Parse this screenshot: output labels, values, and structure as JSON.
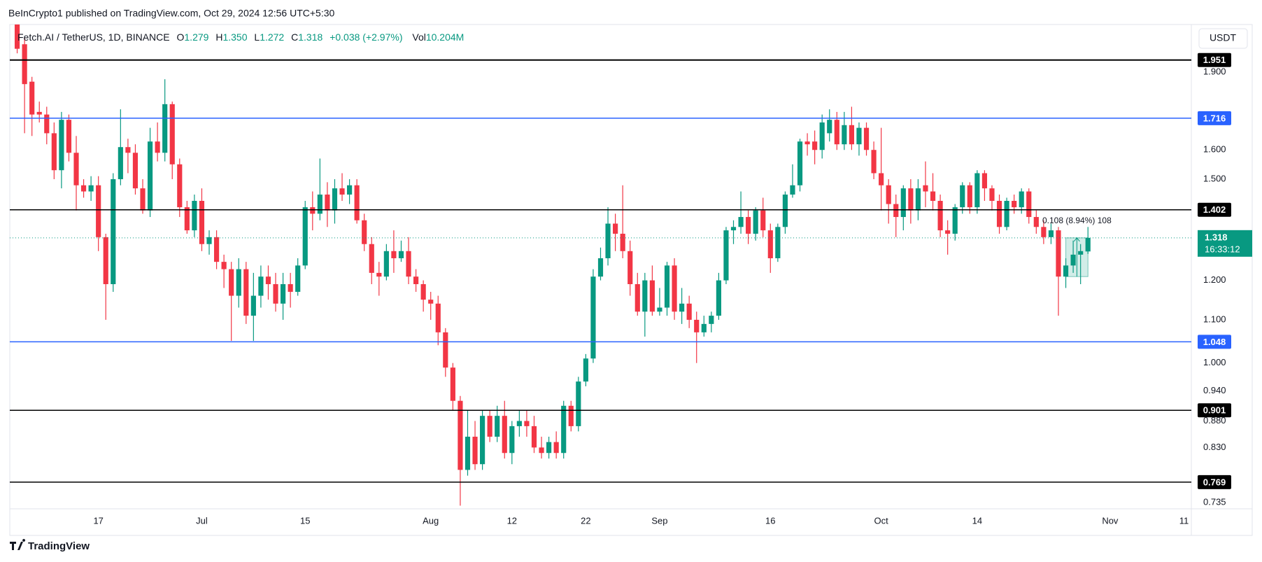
{
  "header": {
    "text": "BeInCrypto1 published on TradingView.com, Oct 29, 2024 12:56 UTC+5:30"
  },
  "footer": {
    "brand": "TradingView"
  },
  "chart_data": {
    "type": "candlestick",
    "legend": {
      "symbol": "Fetch.AI / TetherUS, 1D, BINANCE",
      "open_label": "O",
      "open": "1.279",
      "high_label": "H",
      "high": "1.350",
      "low_label": "L",
      "low": "1.272",
      "close_label": "C",
      "close": "1.318",
      "change": "+0.038 (+2.97%)",
      "volume_label": "Vol",
      "volume": "10.204M"
    },
    "currency": "USDT",
    "countdown": "16:33:12",
    "up_color": "#089981",
    "down_color": "#f23645",
    "log_scale": true,
    "grid": false,
    "xlim": [
      "06-05",
      "11-12"
    ],
    "ylim": [
      0.725,
      2.11
    ],
    "yticks": [
      0.735,
      {
        "value": 0.83,
        "label": "0.830"
      },
      {
        "value": 0.88,
        "label": "0.880"
      },
      {
        "value": 0.94,
        "label": "0.940"
      },
      {
        "value": 1,
        "label": "1.000"
      },
      {
        "value": 1.1,
        "label": "1.100"
      },
      {
        "value": 1.2,
        "label": "1.200"
      },
      {
        "value": 1.5,
        "label": "1.500"
      },
      {
        "value": 1.6,
        "label": "1.600"
      },
      {
        "value": 1.9,
        "label": "1.900"
      }
    ],
    "xticks": [
      {
        "value": "06-17",
        "label": "17"
      },
      {
        "value": "07-01",
        "label": "Jul"
      },
      {
        "value": "07-15",
        "label": "15"
      },
      {
        "value": "08-01",
        "label": "Aug"
      },
      {
        "value": "08-12",
        "label": "12"
      },
      {
        "value": "08-22",
        "label": "22"
      },
      {
        "value": "09-01",
        "label": "Sep"
      },
      {
        "value": "09-16",
        "label": "16"
      },
      {
        "value": "10-01",
        "label": "Oct"
      },
      {
        "value": "10-14",
        "label": "14"
      },
      {
        "value": "11-01",
        "label": "Nov"
      },
      {
        "value": "11-11",
        "label": "11"
      }
    ],
    "levels": [
      {
        "value": 1.951,
        "color": "#000000"
      },
      {
        "value": 1.716,
        "color": "#2962ff"
      },
      {
        "value": 1.402,
        "color": "#000000"
      },
      {
        "value": 1.048,
        "color": "#2962ff"
      },
      {
        "value": 0.901,
        "color": "#000000"
      },
      {
        "value": 0.769,
        "color": "#000000"
      }
    ],
    "measure": {
      "label": "0.108 (8.94%) 108",
      "x": [
        "10-26",
        "10-29"
      ],
      "low": 1.21,
      "high": 1.318
    },
    "x": [
      "06-06",
      "06-07",
      "06-08",
      "06-09",
      "06-10",
      "06-11",
      "06-12",
      "06-13",
      "06-14",
      "06-15",
      "06-16",
      "06-17",
      "06-18",
      "06-19",
      "06-20",
      "06-21",
      "06-22",
      "06-23",
      "06-24",
      "06-25",
      "06-26",
      "06-27",
      "06-28",
      "06-29",
      "06-30",
      "07-01",
      "07-02",
      "07-03",
      "07-04",
      "07-05",
      "07-06",
      "07-07",
      "07-08",
      "07-09",
      "07-10",
      "07-11",
      "07-12",
      "07-13",
      "07-14",
      "07-15",
      "07-16",
      "07-17",
      "07-18",
      "07-19",
      "07-20",
      "07-21",
      "07-22",
      "07-23",
      "07-24",
      "07-25",
      "07-26",
      "07-27",
      "07-28",
      "07-29",
      "07-30",
      "07-31",
      "08-01",
      "08-02",
      "08-03",
      "08-04",
      "08-05",
      "08-06",
      "08-07",
      "08-08",
      "08-09",
      "08-10",
      "08-11",
      "08-12",
      "08-13",
      "08-14",
      "08-15",
      "08-16",
      "08-17",
      "08-18",
      "08-19",
      "08-20",
      "08-21",
      "08-22",
      "08-23",
      "08-24",
      "08-25",
      "08-26",
      "08-27",
      "08-28",
      "08-29",
      "08-30",
      "08-31",
      "09-01",
      "09-02",
      "09-03",
      "09-04",
      "09-05",
      "09-06",
      "09-07",
      "09-08",
      "09-09",
      "09-10",
      "09-11",
      "09-12",
      "09-13",
      "09-14",
      "09-15",
      "09-16",
      "09-17",
      "09-18",
      "09-19",
      "09-20",
      "09-21",
      "09-22",
      "09-23",
      "09-24",
      "09-25",
      "09-26",
      "09-27",
      "09-28",
      "09-29",
      "09-30",
      "10-01",
      "10-02",
      "10-03",
      "10-04",
      "10-05",
      "10-06",
      "10-07",
      "10-08",
      "10-09",
      "10-10",
      "10-11",
      "10-12",
      "10-13",
      "10-14",
      "10-15",
      "10-16",
      "10-17",
      "10-18",
      "10-19",
      "10-20",
      "10-21",
      "10-22",
      "10-23",
      "10-24",
      "10-25",
      "10-26",
      "10-27",
      "10-28",
      "10-29"
    ],
    "open": [
      2.12,
      2.02,
      1.86,
      1.74,
      1.73,
      1.66,
      1.53,
      1.71,
      1.59,
      1.48,
      1.46,
      1.48,
      1.32,
      1.19,
      1.5,
      1.61,
      1.59,
      1.47,
      1.4,
      1.63,
      1.59,
      1.77,
      1.55,
      1.41,
      1.34,
      1.43,
      1.3,
      1.32,
      1.25,
      1.23,
      1.16,
      1.23,
      1.11,
      1.16,
      1.21,
      1.19,
      1.14,
      1.19,
      1.17,
      1.24,
      1.41,
      1.39,
      1.45,
      1.4,
      1.47,
      1.45,
      1.48,
      1.37,
      1.3,
      1.22,
      1.21,
      1.28,
      1.26,
      1.28,
      1.21,
      1.19,
      1.15,
      1.14,
      1.07,
      0.99,
      0.92,
      0.79,
      0.85,
      0.8,
      0.89,
      0.85,
      0.89,
      0.82,
      0.87,
      0.88,
      0.87,
      0.83,
      0.82,
      0.84,
      0.82,
      0.91,
      0.87,
      0.96,
      1.01,
      1.21,
      1.26,
      1.36,
      1.33,
      1.28,
      1.19,
      1.12,
      1.2,
      1.12,
      1.13,
      1.24,
      1.12,
      1.14,
      1.1,
      1.07,
      1.09,
      1.11,
      1.2,
      1.34,
      1.35,
      1.38,
      1.33,
      1.4,
      1.34,
      1.26,
      1.35,
      1.45,
      1.48,
      1.63,
      1.63,
      1.6,
      1.66,
      1.71,
      1.62,
      1.69,
      1.62,
      1.68,
      1.6,
      1.52,
      1.48,
      1.42,
      1.38,
      1.47,
      1.4,
      1.48,
      1.46,
      1.43,
      1.34,
      1.33,
      1.41,
      1.48,
      1.41,
      1.52,
      1.47,
      1.43,
      1.35,
      1.43,
      1.41,
      1.46,
      1.38,
      1.35,
      1.32,
      1.34,
      1.21,
      1.24,
      1.27,
      1.279
    ],
    "high": [
      2.2,
      2.05,
      1.88,
      1.78,
      1.76,
      1.7,
      1.74,
      1.73,
      1.65,
      1.5,
      1.51,
      1.51,
      1.33,
      1.52,
      1.75,
      1.64,
      1.62,
      1.5,
      1.68,
      1.7,
      1.87,
      1.78,
      1.57,
      1.43,
      1.45,
      1.47,
      1.34,
      1.34,
      1.27,
      1.25,
      1.26,
      1.25,
      1.22,
      1.24,
      1.24,
      1.22,
      1.22,
      1.22,
      1.26,
      1.43,
      1.46,
      1.57,
      1.49,
      1.5,
      1.52,
      1.5,
      1.5,
      1.39,
      1.32,
      1.25,
      1.3,
      1.34,
      1.31,
      1.32,
      1.23,
      1.2,
      1.17,
      1.16,
      1.08,
      1.0,
      0.93,
      0.9,
      0.88,
      0.9,
      0.9,
      0.91,
      0.92,
      0.88,
      0.9,
      0.9,
      0.89,
      0.85,
      0.85,
      0.86,
      0.92,
      0.92,
      0.97,
      1.02,
      1.23,
      1.29,
      1.41,
      1.39,
      1.48,
      1.31,
      1.22,
      1.22,
      1.24,
      1.18,
      1.25,
      1.26,
      1.18,
      1.16,
      1.12,
      1.11,
      1.12,
      1.22,
      1.35,
      1.37,
      1.46,
      1.4,
      1.41,
      1.44,
      1.36,
      1.36,
      1.46,
      1.55,
      1.64,
      1.66,
      1.67,
      1.73,
      1.75,
      1.74,
      1.74,
      1.76,
      1.7,
      1.7,
      1.63,
      1.68,
      1.5,
      1.45,
      1.48,
      1.5,
      1.5,
      1.56,
      1.52,
      1.45,
      1.37,
      1.42,
      1.49,
      1.49,
      1.53,
      1.53,
      1.48,
      1.45,
      1.44,
      1.45,
      1.47,
      1.47,
      1.4,
      1.37,
      1.36,
      1.35,
      1.26,
      1.31,
      1.3,
      1.35
    ],
    "low": [
      1.98,
      1.66,
      1.65,
      1.7,
      1.62,
      1.5,
      1.47,
      1.56,
      1.4,
      1.44,
      1.43,
      1.28,
      1.1,
      1.17,
      1.48,
      1.52,
      1.45,
      1.39,
      1.38,
      1.56,
      1.56,
      1.5,
      1.38,
      1.33,
      1.32,
      1.28,
      1.27,
      1.23,
      1.18,
      1.05,
      1.13,
      1.09,
      1.05,
      1.13,
      1.15,
      1.12,
      1.1,
      1.13,
      1.16,
      1.23,
      1.34,
      1.37,
      1.35,
      1.36,
      1.43,
      1.42,
      1.36,
      1.28,
      1.19,
      1.16,
      1.2,
      1.22,
      1.25,
      1.19,
      1.17,
      1.12,
      1.1,
      1.04,
      0.97,
      0.9,
      0.73,
      0.78,
      0.79,
      0.79,
      0.84,
      0.84,
      0.81,
      0.8,
      0.85,
      0.85,
      0.82,
      0.81,
      0.81,
      0.81,
      0.81,
      0.86,
      0.86,
      0.95,
      1.0,
      1.2,
      1.24,
      1.28,
      1.26,
      1.16,
      1.11,
      1.06,
      1.11,
      1.11,
      1.11,
      1.1,
      1.09,
      1.08,
      1.0,
      1.06,
      1.07,
      1.1,
      1.19,
      1.3,
      1.33,
      1.3,
      1.31,
      1.32,
      1.22,
      1.25,
      1.33,
      1.44,
      1.46,
      1.58,
      1.55,
      1.57,
      1.63,
      1.6,
      1.6,
      1.6,
      1.58,
      1.58,
      1.5,
      1.4,
      1.36,
      1.32,
      1.34,
      1.36,
      1.37,
      1.41,
      1.4,
      1.32,
      1.27,
      1.31,
      1.39,
      1.39,
      1.39,
      1.43,
      1.4,
      1.33,
      1.34,
      1.39,
      1.39,
      1.36,
      1.33,
      1.3,
      1.3,
      1.11,
      1.18,
      1.22,
      1.19,
      1.272
    ],
    "close": [
      2.0,
      1.85,
      1.73,
      1.73,
      1.66,
      1.53,
      1.71,
      1.59,
      1.48,
      1.46,
      1.48,
      1.32,
      1.19,
      1.5,
      1.61,
      1.59,
      1.47,
      1.4,
      1.63,
      1.59,
      1.77,
      1.55,
      1.41,
      1.34,
      1.43,
      1.3,
      1.32,
      1.25,
      1.23,
      1.16,
      1.23,
      1.11,
      1.16,
      1.21,
      1.19,
      1.14,
      1.19,
      1.17,
      1.24,
      1.41,
      1.39,
      1.45,
      1.4,
      1.47,
      1.45,
      1.48,
      1.37,
      1.3,
      1.22,
      1.21,
      1.28,
      1.26,
      1.28,
      1.21,
      1.19,
      1.15,
      1.14,
      1.07,
      0.99,
      0.92,
      0.79,
      0.85,
      0.8,
      0.89,
      0.85,
      0.89,
      0.82,
      0.87,
      0.88,
      0.87,
      0.83,
      0.82,
      0.84,
      0.82,
      0.91,
      0.87,
      0.96,
      1.01,
      1.21,
      1.26,
      1.36,
      1.33,
      1.28,
      1.19,
      1.12,
      1.2,
      1.12,
      1.13,
      1.24,
      1.12,
      1.14,
      1.1,
      1.07,
      1.09,
      1.11,
      1.2,
      1.34,
      1.35,
      1.38,
      1.33,
      1.4,
      1.34,
      1.26,
      1.35,
      1.45,
      1.48,
      1.63,
      1.62,
      1.6,
      1.7,
      1.71,
      1.62,
      1.69,
      1.62,
      1.68,
      1.6,
      1.52,
      1.48,
      1.42,
      1.38,
      1.47,
      1.4,
      1.47,
      1.46,
      1.43,
      1.34,
      1.33,
      1.41,
      1.48,
      1.41,
      1.52,
      1.47,
      1.43,
      1.35,
      1.43,
      1.41,
      1.46,
      1.38,
      1.35,
      1.32,
      1.34,
      1.21,
      1.24,
      1.27,
      1.28,
      1.318
    ]
  }
}
